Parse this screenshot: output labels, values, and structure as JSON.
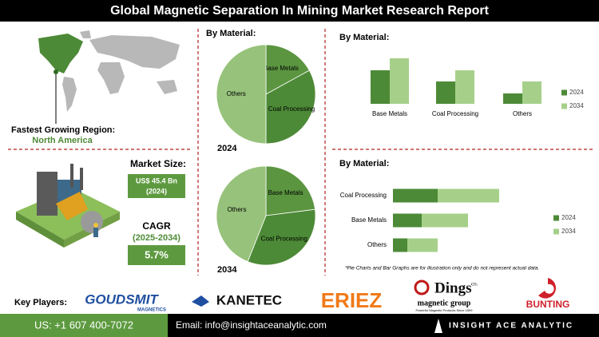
{
  "header": {
    "title": "Global Magnetic Separation In Mining Market Research Report"
  },
  "region": {
    "label": "Fastest Growing Region:",
    "value": "North America"
  },
  "market_size": {
    "label": "Market Size:",
    "value": "US$ 45.4 Bn",
    "year": "(2024)"
  },
  "cagr": {
    "label": "CAGR",
    "period": "(2025-2034)",
    "value": "5.7%"
  },
  "note": "*Pie Charts and Bar Graphs are for illustration only and do not represent actual data.",
  "key_players": {
    "label": "Key Players:",
    "goudsmit": "GOUDSMIT",
    "goudsmit_sub": "MAGNETICS",
    "kanetec": "KANETEC",
    "eriez": "ERIEZ",
    "dings": "Dings",
    "dings_co": "co.",
    "dings_sub": "magnetic group",
    "dings_tag": "Powerful Magnetic Products Since 1899",
    "bunting": "BUNTING"
  },
  "footer": {
    "phone": "US: +1 607 400-7072",
    "email": "Email: info@insightaceanalytic.com",
    "brand": "INSIGHT ACE ANALYTIC"
  },
  "chart_data": [
    {
      "type": "pie",
      "title": "By Material:",
      "label": "2024",
      "categories": [
        "Base Metals",
        "Coal Processing",
        "Others"
      ],
      "values": [
        17,
        33,
        50
      ],
      "colors": [
        "#5b9540",
        "#4d8a37",
        "#97c27b"
      ]
    },
    {
      "type": "pie",
      "label": "2034",
      "categories": [
        "Base Metals",
        "Coal Processing",
        "Others"
      ],
      "values": [
        23,
        33,
        44
      ],
      "colors": [
        "#5b9540",
        "#4d8a37",
        "#97c27b"
      ]
    },
    {
      "type": "bar",
      "title": "By Material:",
      "categories": [
        "Base Metals",
        "Coal Processing",
        "Others"
      ],
      "ylim": [
        0,
        60
      ],
      "series": [
        {
          "name": "2024",
          "color": "#4d8a37",
          "values": [
            42,
            28,
            13
          ]
        },
        {
          "name": "2034",
          "color": "#a6d08a",
          "values": [
            57,
            42,
            28
          ]
        }
      ]
    },
    {
      "type": "barh",
      "stacked": true,
      "title": "By Material:",
      "categories": [
        "Coal Processing",
        "Base Metals",
        "Others"
      ],
      "xlim": [
        0,
        140
      ],
      "series": [
        {
          "name": "2024",
          "color": "#4d8a37",
          "values": [
            56,
            36,
            18
          ]
        },
        {
          "name": "2034",
          "color": "#a6d08a",
          "values": [
            77,
            58,
            38
          ]
        }
      ]
    }
  ]
}
